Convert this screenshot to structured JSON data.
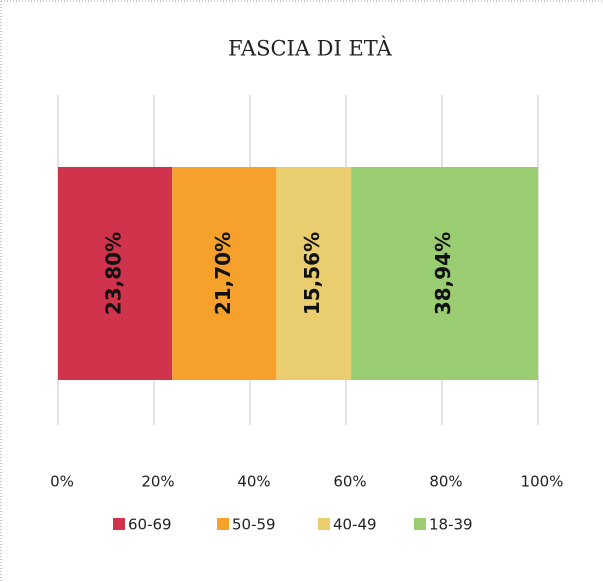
{
  "chart_data": {
    "type": "stacked_bar",
    "title": "FASCIA DI ETÀ",
    "orientation": "horizontal",
    "series": [
      {
        "name": "60-69",
        "color": "#d0334c",
        "values": [
          23.8
        ],
        "value_labels": [
          "23,80%"
        ]
      },
      {
        "name": "50-59",
        "color": "#f5a12c",
        "values": [
          21.7
        ],
        "value_labels": [
          "21,70%"
        ]
      },
      {
        "name": "40-49",
        "color": "#e9cd6e",
        "values": [
          15.56
        ],
        "value_labels": [
          "15,56%"
        ]
      },
      {
        "name": "18-39",
        "color": "#9acd71",
        "values": [
          38.94
        ],
        "value_labels": [
          "38,94%"
        ]
      }
    ],
    "xlim": [
      0,
      100
    ],
    "xticks": [
      {
        "value": 0,
        "label": "0%"
      },
      {
        "value": 20,
        "label": "20%"
      },
      {
        "value": 40,
        "label": "40%"
      },
      {
        "value": 60,
        "label": "60%"
      },
      {
        "value": 80,
        "label": "80%"
      },
      {
        "value": 100,
        "label": "100%"
      }
    ],
    "grid": true,
    "legend": "bottom"
  }
}
